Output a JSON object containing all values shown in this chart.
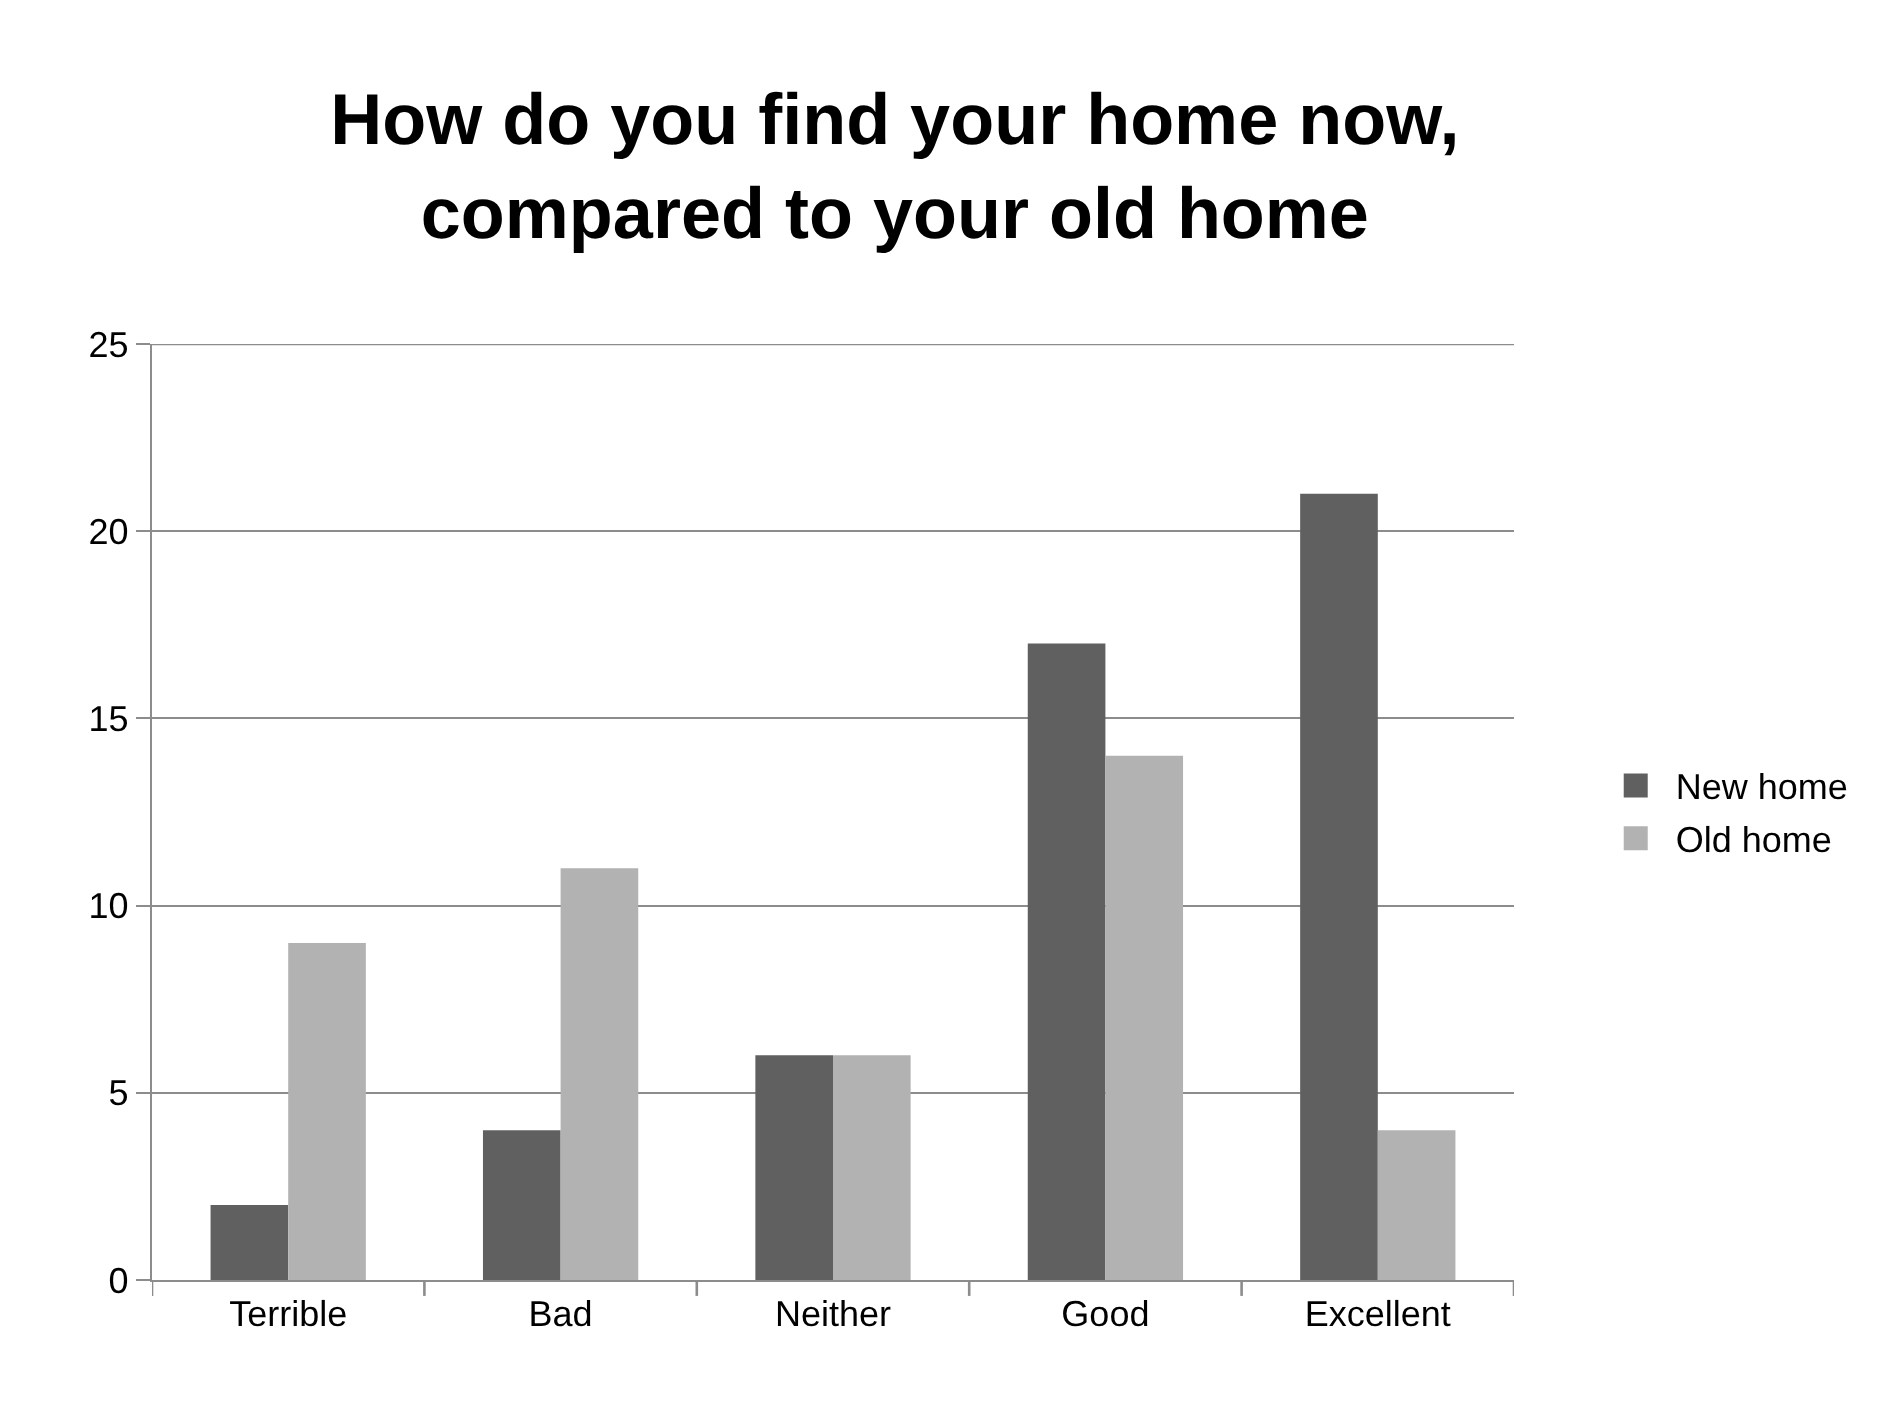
{
  "chart_data": {
    "type": "bar",
    "title": "How do you find your home now,\ncompared to your old home",
    "categories": [
      "Terrible",
      "Bad",
      "Neither",
      "Good",
      "Excellent"
    ],
    "series": [
      {
        "name": "New home",
        "color": "#606060",
        "values": [
          2,
          4,
          6,
          17,
          21
        ]
      },
      {
        "name": "Old home",
        "color": "#b2b2b2",
        "values": [
          9,
          11,
          6,
          14,
          4
        ]
      }
    ],
    "ylim": [
      0,
      25
    ],
    "yticks": [
      0,
      5,
      10,
      15,
      20,
      25
    ],
    "grid": "y",
    "legend": "right"
  }
}
